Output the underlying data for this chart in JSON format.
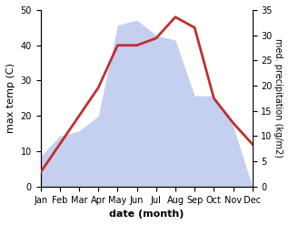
{
  "months": [
    "Jan",
    "Feb",
    "Mar",
    "Apr",
    "May",
    "Jun",
    "Jul",
    "Aug",
    "Sep",
    "Oct",
    "Nov",
    "Dec"
  ],
  "temperature": [
    4,
    12,
    20,
    28,
    40,
    40,
    42,
    48,
    45,
    25,
    18,
    12
  ],
  "precipitation": [
    6,
    10,
    11,
    14,
    32,
    33,
    30,
    29,
    18,
    18,
    12,
    0
  ],
  "temp_color": "#c03030",
  "precip_color_fill": "#c5d0f0",
  "ylabel_left": "max temp (C)",
  "ylabel_right": "med. precipitation (kg/m2)",
  "xlabel": "date (month)",
  "ylim_left": [
    0,
    50
  ],
  "ylim_right": [
    0,
    35
  ],
  "yticks_left": [
    0,
    10,
    20,
    30,
    40,
    50
  ],
  "yticks_right": [
    0,
    5,
    10,
    15,
    20,
    25,
    30,
    35
  ],
  "bg_color": "#ffffff",
  "temp_linewidth": 2.0
}
